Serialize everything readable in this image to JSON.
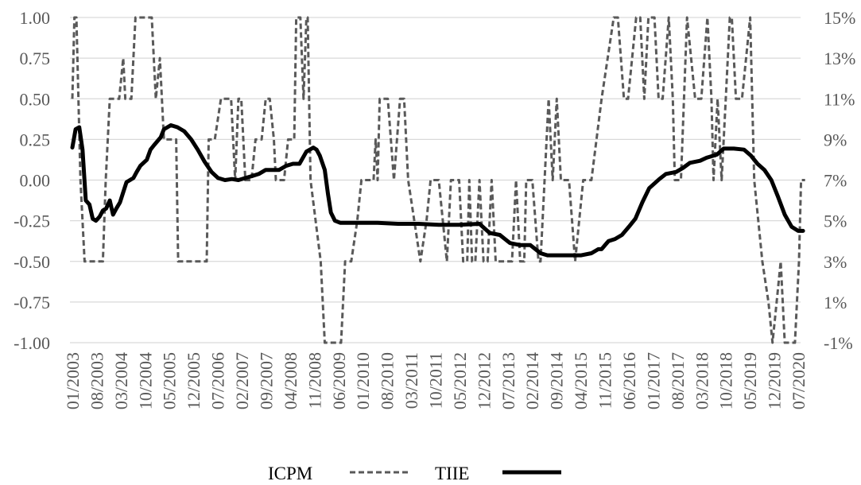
{
  "chart_data": {
    "type": "line",
    "title": "",
    "y_left": {
      "range": [
        -1.0,
        1.0
      ],
      "ticks": [
        "1.00",
        "0.75",
        "0.50",
        "0.25",
        "0.00",
        "-0.25",
        "-0.50",
        "-0.75",
        "-1.00"
      ]
    },
    "y_right": {
      "range": [
        -1,
        15
      ],
      "ticks": [
        "15%",
        "13%",
        "11%",
        "9%",
        "7%",
        "5%",
        "3%",
        "1%",
        "-1%"
      ]
    },
    "x_range": [
      2003.0,
      2020.83
    ],
    "x_tick_labels": [
      "01/2003",
      "08/2003",
      "03/2004",
      "10/2004",
      "05/2005",
      "12/2005",
      "07/2006",
      "02/2007",
      "09/2007",
      "04/2008",
      "11/2008",
      "06/2009",
      "01/2010",
      "08/2010",
      "03/2011",
      "10/2011",
      "05/2012",
      "12/2012",
      "07/2013",
      "02/2014",
      "09/2014",
      "04/2015",
      "11/2015",
      "06/2016",
      "01/2017",
      "08/2017",
      "03/2018",
      "10/2018",
      "05/2019",
      "12/2019",
      "07/2020"
    ],
    "grid": "horizontal",
    "legend_position": "bottom",
    "series": [
      {
        "name": "ICPM",
        "axis": "left",
        "style": "dashed",
        "color": "#595959",
        "points": [
          [
            2003.0,
            0.5
          ],
          [
            2003.05,
            1.0
          ],
          [
            2003.1,
            1.0
          ],
          [
            2003.2,
            0.0
          ],
          [
            2003.3,
            -0.5
          ],
          [
            2003.5,
            -0.5
          ],
          [
            2003.75,
            -0.5
          ],
          [
            2003.82,
            0.0
          ],
          [
            2003.92,
            0.5
          ],
          [
            2004.15,
            0.5
          ],
          [
            2004.25,
            0.75
          ],
          [
            2004.3,
            0.5
          ],
          [
            2004.45,
            0.5
          ],
          [
            2004.55,
            1.0
          ],
          [
            2004.95,
            1.0
          ],
          [
            2005.05,
            0.5
          ],
          [
            2005.15,
            0.75
          ],
          [
            2005.25,
            0.25
          ],
          [
            2005.55,
            0.25
          ],
          [
            2005.6,
            -0.5
          ],
          [
            2006.3,
            -0.5
          ],
          [
            2006.35,
            0.25
          ],
          [
            2006.5,
            0.25
          ],
          [
            2006.65,
            0.5
          ],
          [
            2006.9,
            0.5
          ],
          [
            2007.0,
            0.0
          ],
          [
            2007.08,
            0.5
          ],
          [
            2007.15,
            0.5
          ],
          [
            2007.25,
            0.0
          ],
          [
            2007.4,
            0.0
          ],
          [
            2007.5,
            0.25
          ],
          [
            2007.65,
            0.25
          ],
          [
            2007.75,
            0.5
          ],
          [
            2007.85,
            0.5
          ],
          [
            2007.95,
            0.25
          ],
          [
            2008.0,
            0.0
          ],
          [
            2008.2,
            0.0
          ],
          [
            2008.3,
            0.25
          ],
          [
            2008.45,
            0.25
          ],
          [
            2008.5,
            1.0
          ],
          [
            2008.6,
            1.0
          ],
          [
            2008.68,
            0.5
          ],
          [
            2008.75,
            1.0
          ],
          [
            2008.78,
            1.0
          ],
          [
            2008.85,
            0.0
          ],
          [
            2009.1,
            -0.5
          ],
          [
            2009.2,
            -1.0
          ],
          [
            2009.6,
            -1.0
          ],
          [
            2009.7,
            -0.5
          ],
          [
            2009.85,
            -0.5
          ],
          [
            2010.0,
            -0.25
          ],
          [
            2010.1,
            0.0
          ],
          [
            2010.4,
            0.0
          ],
          [
            2010.45,
            0.25
          ],
          [
            2010.5,
            0.0
          ],
          [
            2010.55,
            0.5
          ],
          [
            2010.75,
            0.5
          ],
          [
            2010.9,
            0.0
          ],
          [
            2011.05,
            0.5
          ],
          [
            2011.15,
            0.5
          ],
          [
            2011.25,
            0.0
          ],
          [
            2011.4,
            -0.25
          ],
          [
            2011.55,
            -0.5
          ],
          [
            2011.7,
            -0.25
          ],
          [
            2011.8,
            0.0
          ],
          [
            2012.0,
            0.0
          ],
          [
            2012.1,
            -0.25
          ],
          [
            2012.2,
            -0.5
          ],
          [
            2012.3,
            0.0
          ],
          [
            2012.5,
            0.0
          ],
          [
            2012.6,
            -0.5
          ],
          [
            2012.7,
            -0.5
          ],
          [
            2012.75,
            0.0
          ],
          [
            2012.82,
            -0.5
          ],
          [
            2012.9,
            -0.5
          ],
          [
            2013.0,
            0.0
          ],
          [
            2013.1,
            -0.5
          ],
          [
            2013.2,
            -0.5
          ],
          [
            2013.3,
            0.0
          ],
          [
            2013.4,
            -0.5
          ],
          [
            2013.8,
            -0.5
          ],
          [
            2013.9,
            0.0
          ],
          [
            2014.0,
            -0.5
          ],
          [
            2014.1,
            -0.5
          ],
          [
            2014.15,
            0.0
          ],
          [
            2014.3,
            0.0
          ],
          [
            2014.45,
            -0.5
          ],
          [
            2014.5,
            -0.5
          ],
          [
            2014.6,
            0.0
          ],
          [
            2014.7,
            0.5
          ],
          [
            2014.8,
            0.0
          ],
          [
            2014.9,
            0.5
          ],
          [
            2015.0,
            0.0
          ],
          [
            2015.1,
            0.0
          ],
          [
            2015.2,
            0.0
          ],
          [
            2015.35,
            -0.5
          ],
          [
            2015.45,
            -0.25
          ],
          [
            2015.55,
            0.0
          ],
          [
            2015.75,
            0.0
          ],
          [
            2016.0,
            0.5
          ],
          [
            2016.3,
            1.0
          ],
          [
            2016.4,
            1.0
          ],
          [
            2016.55,
            0.5
          ],
          [
            2016.65,
            0.5
          ],
          [
            2016.85,
            1.0
          ],
          [
            2016.95,
            1.0
          ],
          [
            2017.05,
            0.5
          ],
          [
            2017.15,
            1.0
          ],
          [
            2017.3,
            1.0
          ],
          [
            2017.4,
            0.5
          ],
          [
            2017.5,
            0.5
          ],
          [
            2017.65,
            1.0
          ],
          [
            2017.75,
            0.5
          ],
          [
            2017.8,
            0.0
          ],
          [
            2017.95,
            0.0
          ],
          [
            2018.1,
            1.0
          ],
          [
            2018.2,
            0.75
          ],
          [
            2018.3,
            0.5
          ],
          [
            2018.45,
            0.5
          ],
          [
            2018.6,
            1.0
          ],
          [
            2018.7,
            0.5
          ],
          [
            2018.75,
            0.0
          ],
          [
            2018.85,
            0.5
          ],
          [
            2018.95,
            0.0
          ],
          [
            2019.05,
            0.5
          ],
          [
            2019.15,
            1.0
          ],
          [
            2019.2,
            1.0
          ],
          [
            2019.3,
            0.5
          ],
          [
            2019.45,
            0.5
          ],
          [
            2019.65,
            1.0
          ],
          [
            2019.75,
            0.0
          ],
          [
            2019.95,
            -0.5
          ],
          [
            2020.1,
            -0.75
          ],
          [
            2020.2,
            -1.0
          ],
          [
            2020.3,
            -0.75
          ],
          [
            2020.4,
            -0.5
          ],
          [
            2020.5,
            -1.0
          ],
          [
            2020.75,
            -1.0
          ],
          [
            2020.85,
            -0.5
          ],
          [
            2020.9,
            0.0
          ],
          [
            2021.0,
            0.0
          ]
        ]
      },
      {
        "name": "TIIE",
        "axis": "right",
        "style": "solid",
        "color": "#000000",
        "points": [
          [
            2003.0,
            8.6
          ],
          [
            2003.08,
            9.5
          ],
          [
            2003.17,
            9.6
          ],
          [
            2003.25,
            8.5
          ],
          [
            2003.33,
            6.0
          ],
          [
            2003.42,
            5.8
          ],
          [
            2003.5,
            5.1
          ],
          [
            2003.58,
            5.0
          ],
          [
            2003.67,
            5.2
          ],
          [
            2003.75,
            5.5
          ],
          [
            2003.83,
            5.6
          ],
          [
            2003.92,
            6.0
          ],
          [
            2004.0,
            5.3
          ],
          [
            2004.08,
            5.6
          ],
          [
            2004.17,
            5.9
          ],
          [
            2004.25,
            6.4
          ],
          [
            2004.33,
            6.9
          ],
          [
            2004.5,
            7.1
          ],
          [
            2004.58,
            7.4
          ],
          [
            2004.67,
            7.7
          ],
          [
            2004.83,
            8.0
          ],
          [
            2004.92,
            8.5
          ],
          [
            2005.0,
            8.7
          ],
          [
            2005.17,
            9.1
          ],
          [
            2005.25,
            9.5
          ],
          [
            2005.42,
            9.7
          ],
          [
            2005.58,
            9.6
          ],
          [
            2005.75,
            9.4
          ],
          [
            2005.92,
            9.0
          ],
          [
            2006.08,
            8.5
          ],
          [
            2006.25,
            7.9
          ],
          [
            2006.42,
            7.4
          ],
          [
            2006.58,
            7.1
          ],
          [
            2006.75,
            7.0
          ],
          [
            2006.92,
            7.05
          ],
          [
            2007.08,
            7.0
          ],
          [
            2007.25,
            7.1
          ],
          [
            2007.42,
            7.2
          ],
          [
            2007.58,
            7.3
          ],
          [
            2007.75,
            7.5
          ],
          [
            2007.92,
            7.5
          ],
          [
            2008.08,
            7.5
          ],
          [
            2008.25,
            7.7
          ],
          [
            2008.42,
            7.8
          ],
          [
            2008.58,
            7.8
          ],
          [
            2008.75,
            8.4
          ],
          [
            2008.92,
            8.6
          ],
          [
            2009.0,
            8.5
          ],
          [
            2009.08,
            8.2
          ],
          [
            2009.2,
            7.5
          ],
          [
            2009.28,
            6.3
          ],
          [
            2009.35,
            5.4
          ],
          [
            2009.45,
            5.0
          ],
          [
            2009.58,
            4.9
          ],
          [
            2009.75,
            4.9
          ],
          [
            2010.0,
            4.9
          ],
          [
            2010.5,
            4.9
          ],
          [
            2011.0,
            4.85
          ],
          [
            2011.5,
            4.85
          ],
          [
            2012.0,
            4.8
          ],
          [
            2012.5,
            4.8
          ],
          [
            2013.0,
            4.85
          ],
          [
            2013.25,
            4.4
          ],
          [
            2013.5,
            4.3
          ],
          [
            2013.75,
            3.9
          ],
          [
            2014.0,
            3.8
          ],
          [
            2014.25,
            3.8
          ],
          [
            2014.5,
            3.4
          ],
          [
            2014.67,
            3.3
          ],
          [
            2015.0,
            3.3
          ],
          [
            2015.5,
            3.3
          ],
          [
            2015.75,
            3.4
          ],
          [
            2015.92,
            3.6
          ],
          [
            2016.0,
            3.6
          ],
          [
            2016.17,
            4.0
          ],
          [
            2016.33,
            4.1
          ],
          [
            2016.5,
            4.3
          ],
          [
            2016.67,
            4.7
          ],
          [
            2016.83,
            5.1
          ],
          [
            2017.0,
            5.9
          ],
          [
            2017.17,
            6.6
          ],
          [
            2017.42,
            7.05
          ],
          [
            2017.58,
            7.3
          ],
          [
            2017.83,
            7.4
          ],
          [
            2018.0,
            7.6
          ],
          [
            2018.17,
            7.85
          ],
          [
            2018.42,
            7.95
          ],
          [
            2018.58,
            8.1
          ],
          [
            2018.83,
            8.25
          ],
          [
            2019.0,
            8.55
          ],
          [
            2019.25,
            8.55
          ],
          [
            2019.5,
            8.5
          ],
          [
            2019.67,
            8.2
          ],
          [
            2019.83,
            7.8
          ],
          [
            2020.0,
            7.5
          ],
          [
            2020.17,
            7.0
          ],
          [
            2020.33,
            6.2
          ],
          [
            2020.5,
            5.3
          ],
          [
            2020.67,
            4.7
          ],
          [
            2020.83,
            4.5
          ],
          [
            2020.95,
            4.5
          ]
        ]
      }
    ]
  }
}
